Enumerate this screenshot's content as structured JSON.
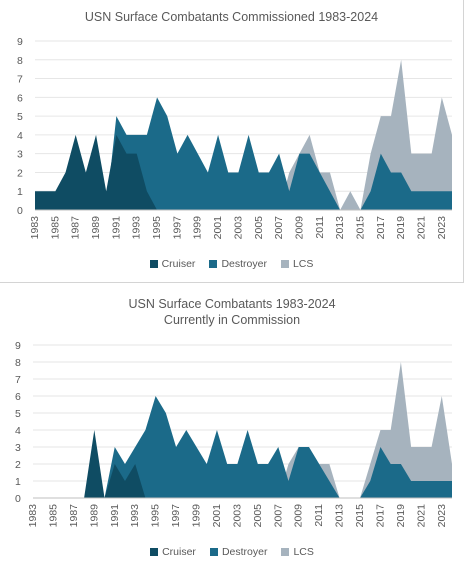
{
  "colors": {
    "Cruiser": "#0f4c63",
    "Destroyer": "#1b6a89",
    "LCS": "#a6b3be"
  },
  "chart_data": [
    {
      "type": "area",
      "title": "USN Surface Combatants Commissioned 1983-2024",
      "x": [
        1983,
        1984,
        1985,
        1986,
        1987,
        1988,
        1989,
        1990,
        1991,
        1992,
        1993,
        1994,
        1995,
        1996,
        1997,
        1998,
        1999,
        2000,
        2001,
        2002,
        2003,
        2004,
        2005,
        2006,
        2007,
        2008,
        2009,
        2010,
        2011,
        2012,
        2013,
        2014,
        2015,
        2016,
        2017,
        2018,
        2019,
        2020,
        2021,
        2022,
        2023,
        2024
      ],
      "xticks": [
        "1983",
        "1985",
        "1987",
        "1989",
        "1991",
        "1993",
        "1995",
        "1997",
        "1999",
        "2001",
        "2003",
        "2005",
        "2007",
        "2009",
        "2011",
        "2013",
        "2015",
        "2017",
        "2019",
        "2021",
        "2023"
      ],
      "ylim": [
        0,
        9
      ],
      "yticks": [
        0,
        1,
        2,
        3,
        4,
        5,
        6,
        7,
        8,
        9
      ],
      "stacked": false,
      "series": [
        {
          "name": "Cruiser",
          "values": [
            1,
            1,
            1,
            2,
            4,
            2,
            4,
            1,
            4,
            3,
            3,
            1,
            0,
            0,
            0,
            0,
            0,
            0,
            0,
            0,
            0,
            0,
            0,
            0,
            0,
            0,
            0,
            0,
            0,
            0,
            0,
            0,
            0,
            0,
            0,
            0,
            0,
            0,
            0,
            0,
            0,
            0
          ]
        },
        {
          "name": "Destroyer",
          "values": [
            0,
            0,
            0,
            0,
            0,
            0,
            0,
            0,
            5,
            4,
            4,
            4,
            6,
            5,
            3,
            4,
            3,
            2,
            4,
            2,
            2,
            4,
            2,
            2,
            3,
            1,
            3,
            3,
            2,
            1,
            0,
            0,
            0,
            1,
            3,
            2,
            2,
            1,
            1,
            1,
            1,
            1
          ]
        },
        {
          "name": "LCS",
          "values": [
            0,
            0,
            0,
            0,
            0,
            0,
            0,
            0,
            0,
            0,
            0,
            0,
            0,
            0,
            0,
            0,
            0,
            0,
            0,
            0,
            0,
            0,
            0,
            0,
            0,
            2,
            3,
            4,
            2,
            2,
            0,
            1,
            0,
            3,
            5,
            5,
            8,
            3,
            3,
            3,
            6,
            4
          ]
        }
      ],
      "legend": [
        "Cruiser",
        "Destroyer",
        "LCS"
      ],
      "legend_position": "bottom"
    },
    {
      "type": "area",
      "title": "USN Surface Combatants 1983-2024",
      "subtitle": "Currently in Commission",
      "x": [
        1983,
        1984,
        1985,
        1986,
        1987,
        1988,
        1989,
        1990,
        1991,
        1992,
        1993,
        1994,
        1995,
        1996,
        1997,
        1998,
        1999,
        2000,
        2001,
        2002,
        2003,
        2004,
        2005,
        2006,
        2007,
        2008,
        2009,
        2010,
        2011,
        2012,
        2013,
        2014,
        2015,
        2016,
        2017,
        2018,
        2019,
        2020,
        2021,
        2022,
        2023,
        2024
      ],
      "xticks": [
        "1983",
        "1985",
        "1987",
        "1989",
        "1991",
        "1993",
        "1995",
        "1997",
        "1999",
        "2001",
        "2003",
        "2005",
        "2007",
        "2009",
        "2011",
        "2013",
        "2015",
        "2017",
        "2019",
        "2021",
        "2023"
      ],
      "ylim": [
        0,
        9
      ],
      "yticks": [
        0,
        1,
        2,
        3,
        4,
        5,
        6,
        7,
        8,
        9
      ],
      "stacked": false,
      "series": [
        {
          "name": "Cruiser",
          "values": [
            0,
            0,
            0,
            0,
            0,
            0,
            4,
            0,
            2,
            1,
            2,
            0,
            0,
            0,
            0,
            0,
            0,
            0,
            0,
            0,
            0,
            0,
            0,
            0,
            0,
            0,
            0,
            0,
            0,
            0,
            0,
            0,
            0,
            0,
            0,
            0,
            0,
            0,
            0,
            0,
            0,
            0
          ]
        },
        {
          "name": "Destroyer",
          "values": [
            0,
            0,
            0,
            0,
            0,
            0,
            0,
            0,
            3,
            2,
            3,
            4,
            6,
            5,
            3,
            4,
            3,
            2,
            4,
            2,
            2,
            4,
            2,
            2,
            3,
            1,
            3,
            3,
            2,
            1,
            0,
            0,
            0,
            1,
            3,
            2,
            2,
            1,
            1,
            1,
            1,
            1
          ]
        },
        {
          "name": "LCS",
          "values": [
            0,
            0,
            0,
            0,
            0,
            0,
            0,
            0,
            0,
            0,
            0,
            0,
            0,
            0,
            0,
            0,
            0,
            0,
            0,
            0,
            0,
            0,
            0,
            0,
            0,
            2,
            3,
            3,
            2,
            2,
            0,
            0,
            0,
            2,
            4,
            4,
            8,
            3,
            3,
            3,
            6,
            2
          ]
        }
      ],
      "legend": [
        "Cruiser",
        "Destroyer",
        "LCS"
      ],
      "legend_position": "bottom"
    }
  ]
}
